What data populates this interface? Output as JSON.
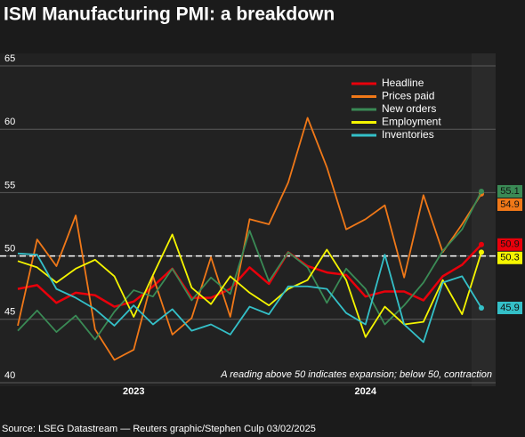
{
  "chart_data": {
    "type": "line",
    "title": "ISM Manufacturing PMI: a breakdown",
    "categories": [
      null,
      null,
      null,
      null,
      null,
      null,
      "2023",
      null,
      null,
      null,
      null,
      null,
      null,
      null,
      null,
      null,
      null,
      null,
      "2024",
      null,
      null,
      null,
      null,
      null,
      null
    ],
    "series": [
      {
        "name": "Headline",
        "color": "#e8000b",
        "values": [
          47.4,
          47.7,
          46.3,
          47.1,
          46.9,
          46.0,
          46.4,
          47.6,
          49.0,
          46.7,
          46.7,
          47.4,
          49.1,
          47.8,
          50.3,
          49.2,
          48.7,
          48.5,
          46.8,
          47.2,
          47.2,
          46.5,
          48.4,
          49.3,
          50.9
        ]
      },
      {
        "name": "Prices paid",
        "color": "#f07818",
        "values": [
          44.5,
          51.3,
          49.2,
          53.2,
          44.2,
          41.8,
          42.6,
          48.4,
          43.8,
          45.1,
          49.9,
          45.2,
          52.9,
          52.5,
          55.8,
          60.9,
          57.0,
          52.1,
          52.9,
          54.0,
          48.3,
          54.8,
          50.3,
          52.5,
          54.9
        ]
      },
      {
        "name": "New orders",
        "color": "#3a8a55",
        "values": [
          44.1,
          45.7,
          44.0,
          45.3,
          43.4,
          45.6,
          47.3,
          46.8,
          49.0,
          46.5,
          48.3,
          47.0,
          52.0,
          48.0,
          50.3,
          49.1,
          46.3,
          49.0,
          47.4,
          44.6,
          46.1,
          47.9,
          50.4,
          52.1,
          55.1
        ]
      },
      {
        "name": "Employment",
        "color": "#f5f500",
        "values": [
          49.6,
          49.1,
          47.9,
          49.0,
          49.7,
          48.4,
          45.2,
          48.5,
          51.7,
          47.5,
          46.2,
          48.4,
          47.1,
          46.1,
          47.4,
          48.1,
          50.5,
          48.1,
          43.6,
          46.0,
          44.6,
          44.8,
          48.1,
          45.4,
          50.3
        ]
      },
      {
        "name": "Inventories",
        "color": "#34c0c8",
        "values": [
          50.2,
          50.1,
          47.4,
          46.7,
          45.8,
          44.5,
          46.1,
          44.6,
          45.8,
          44.1,
          44.6,
          43.8,
          46.0,
          45.4,
          47.6,
          47.6,
          47.4,
          45.5,
          44.6,
          50.1,
          44.6,
          43.2,
          47.9,
          48.4,
          45.9
        ]
      }
    ],
    "ylim": [
      40,
      65
    ],
    "yticks": [
      40,
      45,
      50,
      55,
      60,
      65
    ],
    "grid": true,
    "reference_line": 50,
    "legend": "upper right",
    "annotation": "A reading above 50 indicates expansion; below 50, contraction",
    "source": "Source: LSEG Datastream — Reuters graphic/Stephen Culp 03/02/2025"
  }
}
